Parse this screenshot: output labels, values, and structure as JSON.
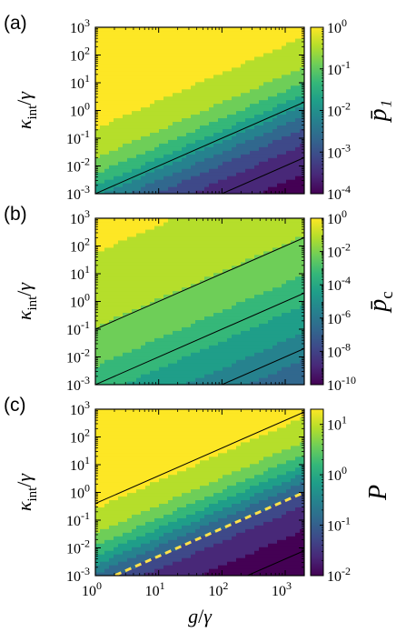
{
  "chart_data": [
    {
      "type": "heatmap",
      "panel_label": "(a)",
      "xlabel": "g/γ",
      "ylabel": "κ_int/γ",
      "x_scale": "log",
      "y_scale": "log",
      "xlim": [
        1,
        2000
      ],
      "ylim": [
        0.001,
        1000
      ],
      "x_ticks": [
        {
          "base": "10",
          "exp": "0"
        },
        {
          "base": "10",
          "exp": "1"
        },
        {
          "base": "10",
          "exp": "2"
        },
        {
          "base": "10",
          "exp": "3"
        }
      ],
      "y_ticks": [
        {
          "base": "10",
          "exp": "-3"
        },
        {
          "base": "10",
          "exp": "-2"
        },
        {
          "base": "10",
          "exp": "-1"
        },
        {
          "base": "10",
          "exp": "0"
        },
        {
          "base": "10",
          "exp": "1"
        },
        {
          "base": "10",
          "exp": "2"
        },
        {
          "base": "10",
          "exp": "3"
        }
      ],
      "colorbar": {
        "label": "p̄₁",
        "scale": "log",
        "range": [
          0.0001,
          1
        ],
        "ticks": [
          {
            "base": "10",
            "exp": "0"
          },
          {
            "base": "10",
            "exp": "-1"
          },
          {
            "base": "10",
            "exp": "-2"
          },
          {
            "base": "10",
            "exp": "-3"
          },
          {
            "base": "10",
            "exp": "-4"
          }
        ]
      },
      "field": {
        "a": 1.5,
        "b": -1.6,
        "decades": 4
      },
      "contours": [
        {
          "log_y_at_log_x0": -3.0,
          "slope": 1.0
        },
        {
          "log_y_at_log_x0": -5.0,
          "slope": 1.0
        },
        {
          "log_y_at_log_x0": -6.6,
          "slope": 1.0
        }
      ],
      "colormap": "viridis"
    },
    {
      "type": "heatmap",
      "panel_label": "(b)",
      "xlabel": "g/γ",
      "ylabel": "κ_int/γ",
      "x_scale": "log",
      "y_scale": "log",
      "xlim": [
        1,
        2000
      ],
      "ylim": [
        0.001,
        1000
      ],
      "x_ticks": [
        {
          "base": "10",
          "exp": "0"
        },
        {
          "base": "10",
          "exp": "1"
        },
        {
          "base": "10",
          "exp": "2"
        },
        {
          "base": "10",
          "exp": "3"
        }
      ],
      "y_ticks": [
        {
          "base": "10",
          "exp": "-3"
        },
        {
          "base": "10",
          "exp": "-2"
        },
        {
          "base": "10",
          "exp": "-1"
        },
        {
          "base": "10",
          "exp": "0"
        },
        {
          "base": "10",
          "exp": "1"
        },
        {
          "base": "10",
          "exp": "2"
        },
        {
          "base": "10",
          "exp": "3"
        }
      ],
      "colorbar": {
        "label": "p̄_c",
        "scale": "log",
        "range": [
          1e-10,
          1
        ],
        "ticks": [
          {
            "base": "10",
            "exp": "0"
          },
          {
            "base": "10",
            "exp": "-2"
          },
          {
            "base": "10",
            "exp": "-4"
          },
          {
            "base": "10",
            "exp": "-6"
          },
          {
            "base": "10",
            "exp": "-8"
          },
          {
            "base": "10",
            "exp": "-10"
          }
        ]
      },
      "field": {
        "a": 2.0,
        "b": -2.4,
        "decades": 10
      },
      "contours": [
        {
          "log_y_at_log_x0": -1.0,
          "slope": 1.0
        },
        {
          "log_y_at_log_x0": -3.0,
          "slope": 1.0
        },
        {
          "log_y_at_log_x0": -5.0,
          "slope": 1.0
        },
        {
          "log_y_at_log_x0": -6.4,
          "slope": 1.0
        }
      ],
      "colormap": "viridis"
    },
    {
      "type": "heatmap",
      "panel_label": "(c)",
      "xlabel": "g/γ",
      "ylabel": "κ_int/γ",
      "x_scale": "log",
      "y_scale": "log",
      "xlim": [
        1,
        2000
      ],
      "ylim": [
        0.001,
        1000
      ],
      "x_ticks": [
        {
          "base": "10",
          "exp": "0"
        },
        {
          "base": "10",
          "exp": "1"
        },
        {
          "base": "10",
          "exp": "2"
        },
        {
          "base": "10",
          "exp": "3"
        }
      ],
      "y_ticks": [
        {
          "base": "10",
          "exp": "-3"
        },
        {
          "base": "10",
          "exp": "-2"
        },
        {
          "base": "10",
          "exp": "-1"
        },
        {
          "base": "10",
          "exp": "0"
        },
        {
          "base": "10",
          "exp": "1"
        },
        {
          "base": "10",
          "exp": "2"
        },
        {
          "base": "10",
          "exp": "3"
        }
      ],
      "colorbar": {
        "label": "P",
        "scale": "log",
        "range": [
          0.01,
          20
        ],
        "ticks": [
          {
            "base": "10",
            "exp": "1"
          },
          {
            "base": "10",
            "exp": "0"
          },
          {
            "base": "10",
            "exp": "-1"
          },
          {
            "base": "10",
            "exp": "-2"
          }
        ]
      },
      "field": {
        "a": 1.3,
        "b": -1.3,
        "decades": 3.3
      },
      "contours": [
        {
          "log_y_at_log_x0": -0.4,
          "slope": 1.0
        },
        {
          "log_y_at_log_x0": -5.4,
          "slope": 1.0
        }
      ],
      "dashed_line": {
        "log_y_at_log_x0": -3.3,
        "slope": 1.0,
        "color": "#ffe14a"
      },
      "colormap": "viridis"
    }
  ],
  "x_tick_labels": [
    {
      "base": "10",
      "exp": "0"
    },
    {
      "base": "10",
      "exp": "1"
    },
    {
      "base": "10",
      "exp": "2"
    },
    {
      "base": "10",
      "exp": "3"
    }
  ]
}
